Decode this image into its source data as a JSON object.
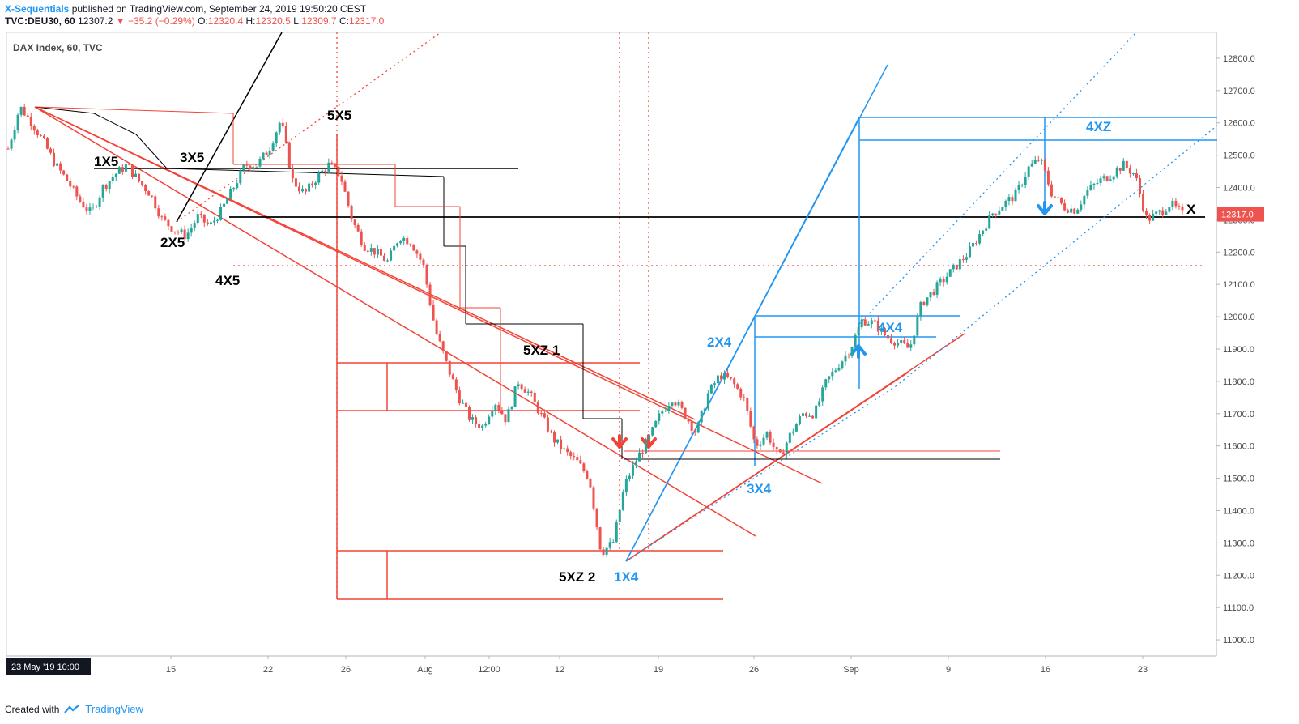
{
  "header": {
    "author": "X-Sequentials",
    "published": " published on TradingView.com, September 24, 2019 19:50:20 CEST",
    "symbol": "TVC:DEU30, 60",
    "last": "12307.2",
    "change": "▼ −35.2 (−0.29%)",
    "o_label": "O:",
    "o": "12320.4",
    "h_label": "H:",
    "h": "12320.5",
    "l_label": "L:",
    "l": "12309.7",
    "c_label": "C:",
    "c": "12317.0"
  },
  "footer": {
    "created_with": "Created with",
    "brand": "TradingView"
  },
  "colors": {
    "up": "#26a69a",
    "down": "#ef5350",
    "red": "#f44336",
    "blue": "#2196f3",
    "black": "#000000"
  },
  "chart_data": {
    "type": "candlestick",
    "title": "DAX Index, 60, TVC",
    "ylim": [
      10950,
      12880
    ],
    "yticks": [
      11000,
      11100,
      11200,
      11300,
      11400,
      11500,
      11600,
      11700,
      11800,
      11900,
      12000,
      12100,
      12200,
      12300,
      12400,
      12500,
      12600,
      12700,
      12800
    ],
    "ytick_labels": [
      "11000.0",
      "11100.0",
      "11200.0",
      "11300.0",
      "11400.0",
      "11500.0",
      "11600.0",
      "11700.0",
      "11800.0",
      "11900.0",
      "12000.0",
      "12100.0",
      "12200.0",
      "12300.0",
      "12400.0",
      "12500.0",
      "12600.0",
      "12700.0",
      "12800.0"
    ],
    "xticks": [
      "23 May '19  10:00",
      "15",
      "22",
      "26",
      "Aug",
      "12:00",
      "12",
      "19",
      "26",
      "Sep",
      "9",
      "16",
      "23"
    ],
    "last_price_label": "12317.0",
    "path_x_start": "23 May '19",
    "path_x_end": "24 Sep '19",
    "price_path": [
      12520,
      12650,
      12600,
      12540,
      12470,
      12420,
      12360,
      12320,
      12400,
      12440,
      12470,
      12420,
      12380,
      12300,
      12270,
      12250,
      12310,
      12280,
      12330,
      12400,
      12470,
      12470,
      12520,
      12610,
      12420,
      12380,
      12430,
      12470,
      12440,
      12300,
      12220,
      12200,
      12170,
      12250,
      12230,
      12160,
      11960,
      11850,
      11750,
      11680,
      11660,
      11740,
      11680,
      11800,
      11760,
      11690,
      11620,
      11580,
      11550,
      11500,
      11270,
      11300,
      11480,
      11560,
      11620,
      11700,
      11750,
      11700,
      11640,
      11760,
      11820,
      11800,
      11750,
      11600,
      11640,
      11560,
      11640,
      11700,
      11700,
      11800,
      11850,
      11900,
      11990,
      11980,
      11940,
      11920,
      11900,
      12040,
      12080,
      12120,
      12160,
      12200,
      12260,
      12320,
      12350,
      12380,
      12460,
      12490,
      12380,
      12340,
      12330,
      12390,
      12420,
      12440,
      12470,
      12440,
      12300,
      12320,
      12350,
      12317
    ],
    "annotations": [
      {
        "label": "1X5",
        "color": "black"
      },
      {
        "label": "2X5",
        "color": "black"
      },
      {
        "label": "3X5",
        "color": "black"
      },
      {
        "label": "4X5",
        "color": "black"
      },
      {
        "label": "5X5",
        "color": "black"
      },
      {
        "label": "5XZ 1",
        "color": "black"
      },
      {
        "label": "5XZ 2",
        "color": "black"
      },
      {
        "label": "1X4",
        "color": "blue"
      },
      {
        "label": "2X4",
        "color": "blue"
      },
      {
        "label": "3X4",
        "color": "blue"
      },
      {
        "label": "4X4",
        "color": "blue"
      },
      {
        "label": "4XZ",
        "color": "blue"
      },
      {
        "label": "X",
        "color": "black"
      }
    ]
  }
}
